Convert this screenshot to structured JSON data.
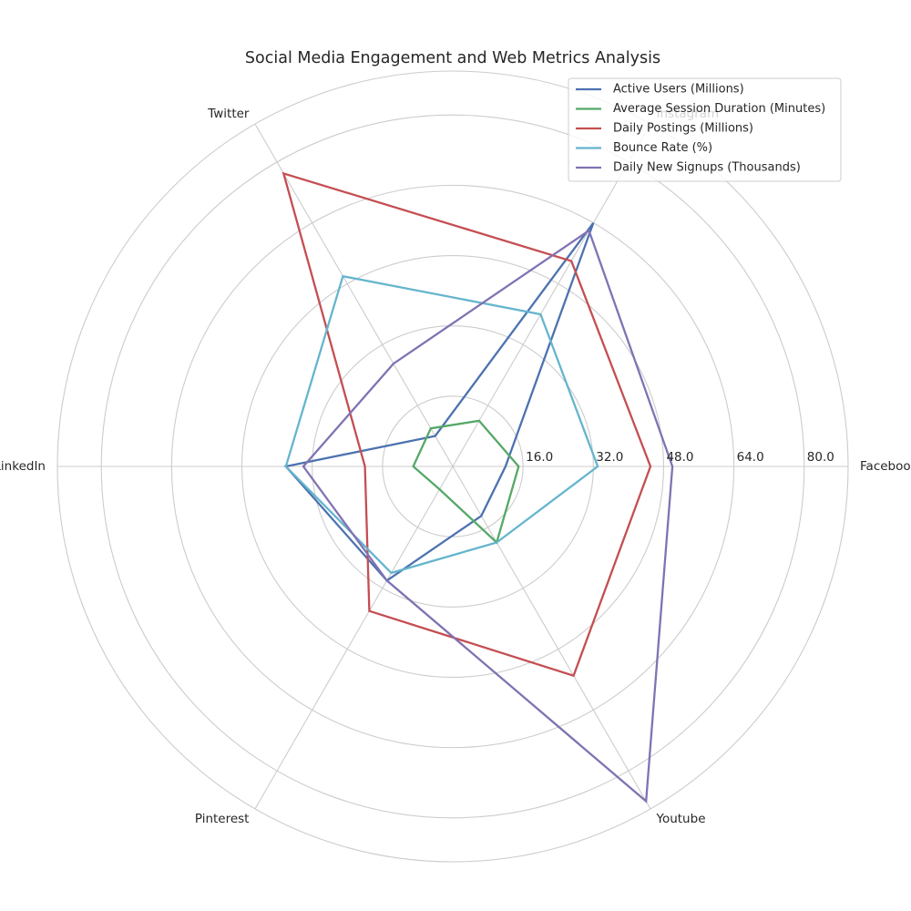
{
  "chart_data": {
    "type": "radar",
    "title": "Social Media Engagement and Web Metrics Analysis",
    "categories": [
      "Facebook",
      "Instagram",
      "Twitter",
      "LinkedIn",
      "Pinterest",
      "Youtube"
    ],
    "rlim": [
      0,
      90
    ],
    "rticks": [
      16.0,
      32.0,
      48.0,
      64.0,
      80.0
    ],
    "rtick_labels": [
      "16.0",
      "32.0",
      "48.0",
      "64.0",
      "80.0"
    ],
    "grid": true,
    "legend_position": "upper right",
    "series": [
      {
        "name": "Active Users (Millions)",
        "color": "#4c72b0",
        "values": [
          12,
          64,
          8,
          38,
          30,
          13
        ]
      },
      {
        "name": "Average Session Duration (Minutes)",
        "color": "#55a868",
        "values": [
          15,
          12,
          10,
          9,
          6,
          20
        ]
      },
      {
        "name": "Daily Postings (Millions)",
        "color": "#c44e52",
        "values": [
          45,
          54,
          77,
          20,
          38,
          55
        ]
      },
      {
        "name": "Bounce Rate (%)",
        "color": "#64b5cd",
        "values": [
          33,
          40,
          50,
          38,
          28,
          20
        ]
      },
      {
        "name": "Daily New Signups (Thousands)",
        "color": "#8172b3",
        "values": [
          50,
          62,
          27,
          34,
          30,
          88
        ]
      }
    ]
  }
}
